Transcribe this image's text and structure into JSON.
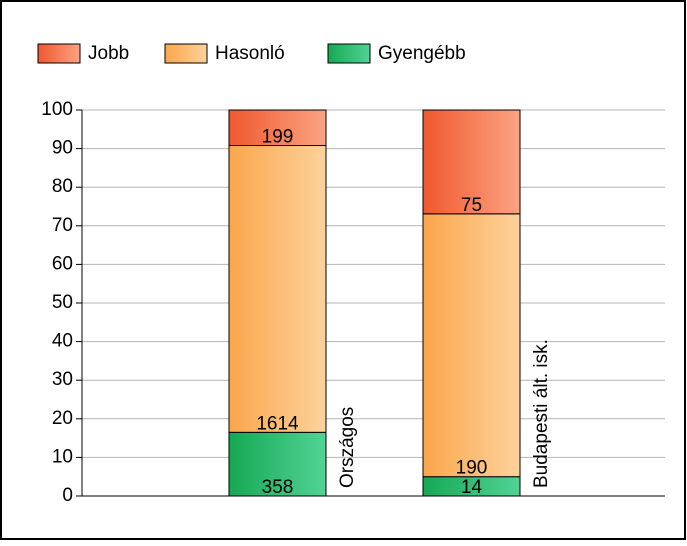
{
  "chart_data": {
    "type": "stacked_bar_100",
    "categories": [
      "Országos",
      "Budapesti ált. isk."
    ],
    "series": [
      {
        "name": "Jobb",
        "gradient": [
          "#f0582e",
          "#fca383"
        ],
        "values": [
          9.2,
          26.9
        ],
        "counts": [
          199,
          75
        ]
      },
      {
        "name": "Hasonló",
        "gradient": [
          "#fba64c",
          "#fdd29c"
        ],
        "values": [
          74.3,
          68.1
        ],
        "counts": [
          1614,
          190
        ]
      },
      {
        "name": "Gyengébb",
        "gradient": [
          "#16a854",
          "#52d394"
        ],
        "values": [
          16.5,
          5.0
        ],
        "counts": [
          358,
          14
        ]
      }
    ],
    "ylim": [
      0,
      100
    ],
    "yticks": [
      0,
      10,
      20,
      30,
      40,
      50,
      60,
      70,
      80,
      90,
      100
    ],
    "grid": true
  }
}
